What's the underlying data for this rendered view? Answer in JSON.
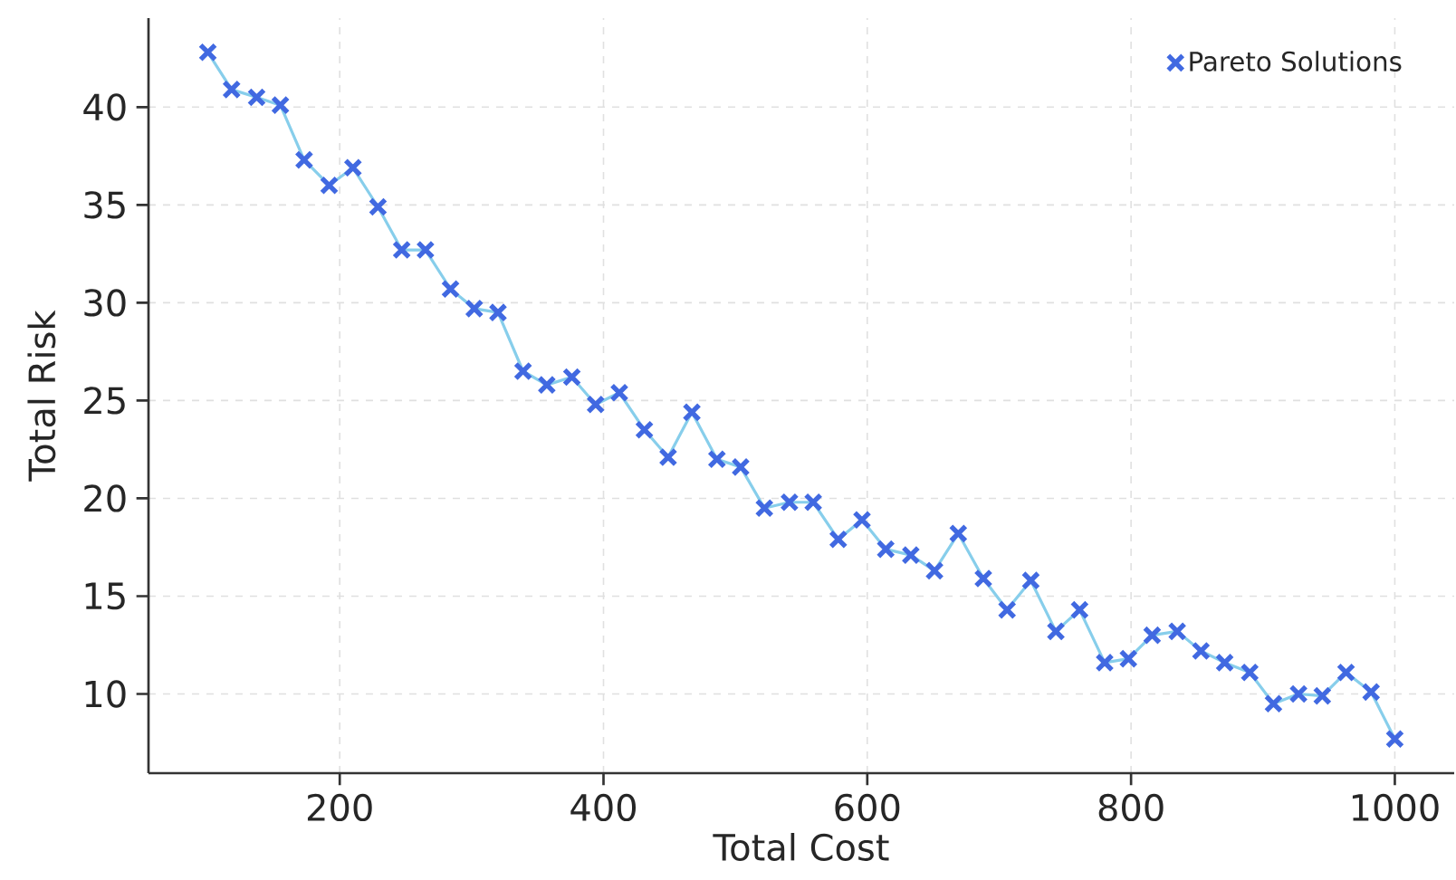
{
  "chart_data": {
    "type": "scatter",
    "xlabel": "Total Cost",
    "ylabel": "Total Risk",
    "x": [
      100,
      118,
      137,
      155,
      173,
      192,
      210,
      229,
      247,
      265,
      284,
      302,
      320,
      339,
      357,
      376,
      394,
      412,
      431,
      449,
      467,
      486,
      504,
      522,
      541,
      559,
      578,
      596,
      614,
      633,
      651,
      669,
      688,
      706,
      724,
      743,
      761,
      780,
      798,
      816,
      835,
      853,
      871,
      890,
      908,
      927,
      945,
      963,
      982,
      1000
    ],
    "series": [
      {
        "type": "line",
        "color": "#87ceeb",
        "marker": "none",
        "values": [
          42.8,
          40.9,
          40.5,
          40.1,
          37.3,
          36.0,
          36.9,
          34.9,
          32.7,
          32.7,
          30.7,
          29.7,
          29.5,
          26.5,
          25.8,
          26.2,
          24.8,
          25.4,
          23.5,
          22.1,
          24.4,
          22.0,
          21.6,
          19.5,
          19.8,
          19.8,
          17.9,
          18.9,
          17.4,
          17.1,
          16.3,
          18.2,
          15.9,
          14.3,
          15.8,
          13.2,
          14.3,
          11.6,
          11.8,
          13.0,
          13.2,
          12.2,
          11.6,
          11.1,
          9.5,
          10.0,
          9.9,
          11.1,
          10.1,
          7.7
        ]
      },
      {
        "name": "Pareto Solutions",
        "color": "#4169e1",
        "marker": "cross",
        "values": [
          42.8,
          40.9,
          40.5,
          40.1,
          37.3,
          36.0,
          36.9,
          34.9,
          32.7,
          32.7,
          30.7,
          29.7,
          29.5,
          26.5,
          25.8,
          26.2,
          24.8,
          25.4,
          23.5,
          22.1,
          24.4,
          22.0,
          21.6,
          19.5,
          19.8,
          19.8,
          17.9,
          18.9,
          17.4,
          17.1,
          16.3,
          18.2,
          15.9,
          14.3,
          15.8,
          13.2,
          14.3,
          11.6,
          11.8,
          13.0,
          13.2,
          12.2,
          11.6,
          11.1,
          9.5,
          10.0,
          9.9,
          11.1,
          10.1,
          7.7
        ]
      }
    ],
    "xlim": [
      55,
      1045
    ],
    "ylim": [
      5.95,
      44.55
    ],
    "xticks": [
      200,
      400,
      600,
      800,
      1000
    ],
    "yticks": [
      10,
      15,
      20,
      25,
      30,
      35,
      40
    ],
    "grid": true,
    "legend": "top right"
  }
}
